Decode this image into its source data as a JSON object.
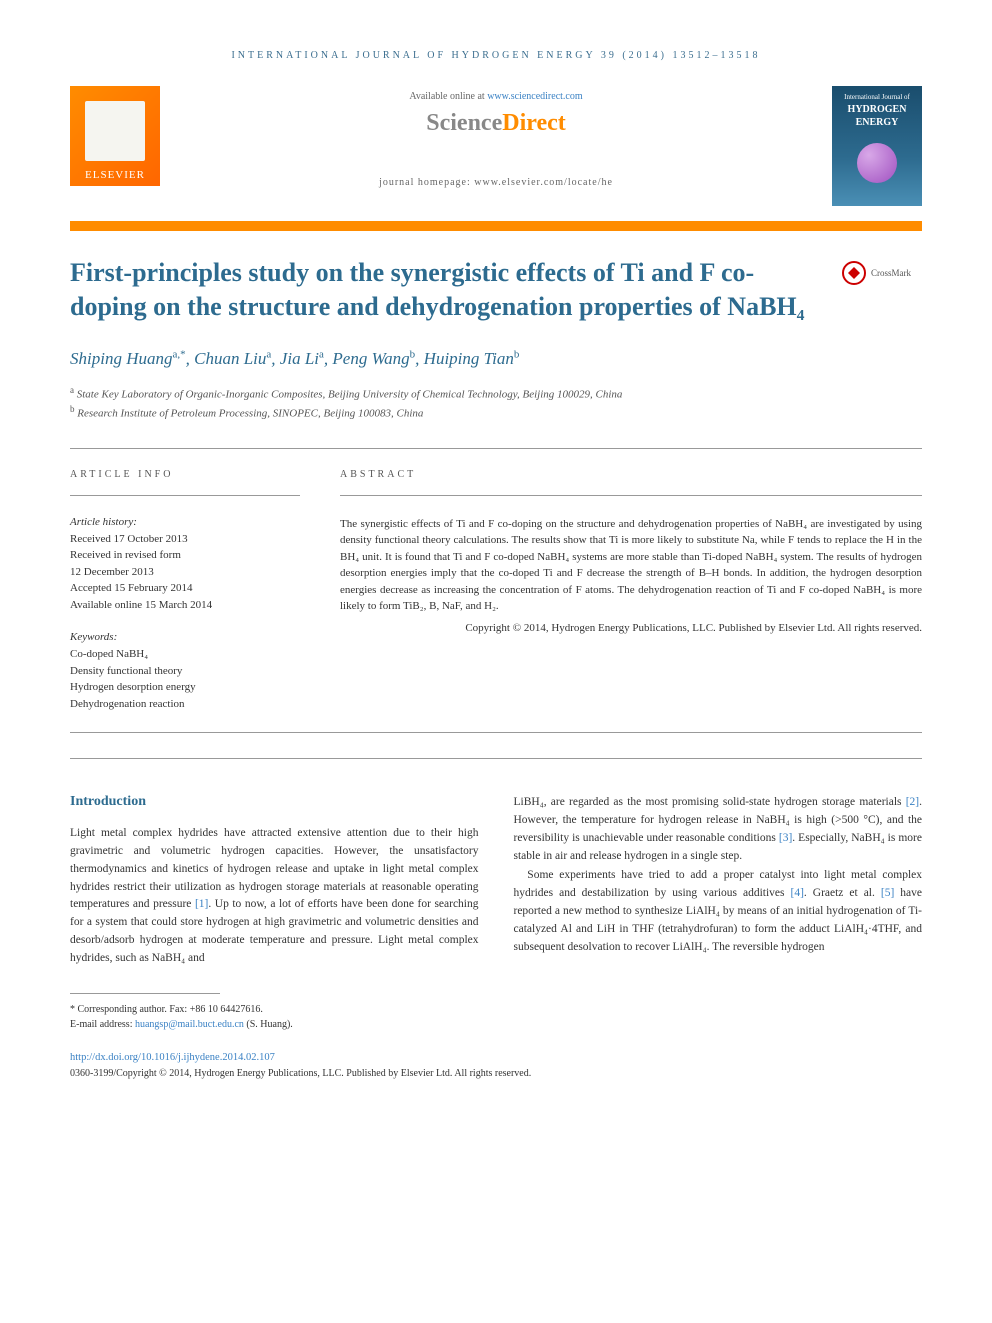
{
  "journal_header": "INTERNATIONAL JOURNAL OF HYDROGEN ENERGY 39 (2014) 13512–13518",
  "available_online_prefix": "Available online at ",
  "sciencedirect_url": "www.sciencedirect.com",
  "sciencedirect_brand_1": "Science",
  "sciencedirect_brand_2": "Direct",
  "homepage_label": "journal homepage: www.elsevier.com/locate/he",
  "elsevier_label": "ELSEVIER",
  "cover": {
    "subtitle": "International Journal of",
    "title1": "HYDROGEN",
    "title2": "ENERGY"
  },
  "crossmark_label": "CrossMark",
  "article": {
    "title": "First-principles study on the synergistic effects of Ti and F co-doping on the structure and dehydrogenation properties of NaBH₄",
    "authors_html": "Shiping Huang",
    "authors": [
      {
        "name": "Shiping Huang",
        "sup": "a,*"
      },
      {
        "name": "Chuan Liu",
        "sup": "a"
      },
      {
        "name": "Jia Li",
        "sup": "a"
      },
      {
        "name": "Peng Wang",
        "sup": "b"
      },
      {
        "name": "Huiping Tian",
        "sup": "b"
      }
    ],
    "affiliations": [
      {
        "sup": "a",
        "text": "State Key Laboratory of Organic-Inorganic Composites, Beijing University of Chemical Technology, Beijing 100029, China"
      },
      {
        "sup": "b",
        "text": "Research Institute of Petroleum Processing, SINOPEC, Beijing 100083, China"
      }
    ]
  },
  "info_heading": "ARTICLE INFO",
  "abstract_heading": "ABSTRACT",
  "history": {
    "label": "Article history:",
    "items": [
      "Received 17 October 2013",
      "Received in revised form",
      "12 December 2013",
      "Accepted 15 February 2014",
      "Available online 15 March 2014"
    ]
  },
  "keywords": {
    "label": "Keywords:",
    "items": [
      "Co-doped NaBH₄",
      "Density functional theory",
      "Hydrogen desorption energy",
      "Dehydrogenation reaction"
    ]
  },
  "abstract_text": "The synergistic effects of Ti and F co-doping on the structure and dehydrogenation properties of NaBH₄ are investigated by using density functional theory calculations. The results show that Ti is more likely to substitute Na, while F tends to replace the H in the BH₄ unit. It is found that Ti and F co-doped NaBH₄ systems are more stable than Ti-doped NaBH₄ system. The results of hydrogen desorption energies imply that the co-doped Ti and F decrease the strength of B–H bonds. In addition, the hydrogen desorption energies decrease as increasing the concentration of F atoms. The dehydrogenation reaction of Ti and F co-doped NaBH₄ is more likely to form TiB₂, B, NaF, and H₂.",
  "copyright_line": "Copyright © 2014, Hydrogen Energy Publications, LLC. Published by Elsevier Ltd. All rights reserved.",
  "intro_heading": "Introduction",
  "intro_col1": "Light metal complex hydrides have attracted extensive attention due to their high gravimetric and volumetric hydrogen capacities. However, the unsatisfactory thermodynamics and kinetics of hydrogen release and uptake in light metal complex hydrides restrict their utilization as hydrogen storage materials at reasonable operating temperatures and pressure [1]. Up to now, a lot of efforts have been done for searching for a system that could store hydrogen at high gravimetric and volumetric densities and desorb/adsorb hydrogen at moderate temperature and pressure. Light metal complex hydrides, such as NaBH₄ and",
  "intro_col2_p1": "LiBH₄, are regarded as the most promising solid-state hydrogen storage materials [2]. However, the temperature for hydrogen release in NaBH₄ is high (>500 °C), and the reversibility is unachievable under reasonable conditions [3]. Especially, NaBH₄ is more stable in air and release hydrogen in a single step.",
  "intro_col2_p2": "Some experiments have tried to add a proper catalyst into light metal complex hydrides and destabilization by using various additives [4]. Graetz et al. [5] have reported a new method to synthesize LiAlH₄ by means of an initial hydrogenation of Ti-catalyzed Al and LiH in THF (tetrahydrofuran) to form the adduct LiAlH₄·4THF, and subsequent desolvation to recover LiAlH₄. The reversible hydrogen",
  "footer": {
    "corresponding": "* Corresponding author. Fax: +86 10 64427616.",
    "email_label": "E-mail address: ",
    "email": "huangsp@mail.buct.edu.cn",
    "email_suffix": " (S. Huang).",
    "doi": "http://dx.doi.org/10.1016/j.ijhydene.2014.02.107",
    "copyright": "0360-3199/Copyright © 2014, Hydrogen Energy Publications, LLC. Published by Elsevier Ltd. All rights reserved."
  },
  "colors": {
    "accent_blue": "#2d6b8f",
    "link_blue": "#3b82c4",
    "orange": "#ff8c00",
    "text": "#333333",
    "muted": "#666666"
  },
  "typography": {
    "title_fontsize": 26,
    "author_fontsize": 17,
    "body_fontsize": 11.5,
    "meta_fontsize": 11,
    "header_fontsize": 10
  },
  "ref_links": {
    "r1": "[1]",
    "r2": "[2]",
    "r3": "[3]",
    "r4": "[4]",
    "r5": "[5]"
  }
}
